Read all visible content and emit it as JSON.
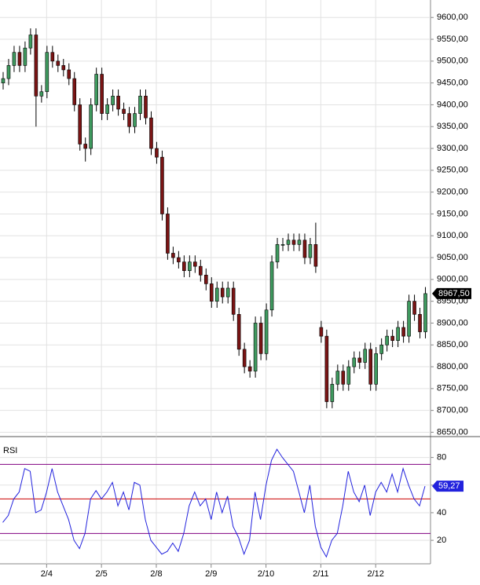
{
  "chart_data": [
    {
      "type": "candlestick",
      "open": [
        9450,
        9460,
        9490,
        9520,
        9490,
        9530,
        9560,
        9420,
        9430,
        9520,
        9500,
        9490,
        9480,
        9460,
        9400,
        9310,
        9300,
        9400,
        9470,
        9380,
        9400,
        9420,
        9390,
        9380,
        9350,
        9380,
        9420,
        9370,
        9300,
        9280,
        9150,
        9060,
        9050,
        9040,
        9020,
        9040,
        9030,
        9010,
        8990,
        8950,
        8980,
        8960,
        8980,
        8920,
        8840,
        8800,
        8790,
        8900,
        8830,
        8930,
        9040,
        9080,
        9080,
        9090,
        9080,
        9090,
        9050,
        9080,
        8890,
        8870,
        8720,
        8760,
        8790,
        8760,
        8800,
        8820,
        8810,
        8840,
        8760,
        8830,
        8850,
        8870,
        8860,
        8890,
        8870,
        8950,
        8920,
        8880
      ],
      "high": [
        9475,
        9505,
        9535,
        9535,
        9545,
        9575,
        9575,
        9445,
        9535,
        9535,
        9515,
        9505,
        9495,
        9475,
        9415,
        9325,
        9415,
        9485,
        9485,
        9415,
        9435,
        9435,
        9405,
        9395,
        9395,
        9435,
        9435,
        9385,
        9315,
        9295,
        9165,
        9075,
        9065,
        9055,
        9055,
        9055,
        9045,
        9025,
        9005,
        8995,
        8995,
        8995,
        8995,
        8935,
        8855,
        8815,
        8915,
        8915,
        8945,
        9055,
        9095,
        9095,
        9105,
        9105,
        9105,
        9105,
        9095,
        9130,
        8905,
        8885,
        8775,
        8805,
        8805,
        8815,
        8835,
        8835,
        8855,
        8855,
        8845,
        8865,
        8885,
        8885,
        8905,
        8905,
        8965,
        8965,
        8935,
        8982.5
      ],
      "low": [
        9435,
        9445,
        9475,
        9475,
        9475,
        9515,
        9350,
        9405,
        9415,
        9485,
        9475,
        9465,
        9445,
        9385,
        9295,
        9270,
        9285,
        9385,
        9365,
        9365,
        9385,
        9375,
        9365,
        9335,
        9335,
        9365,
        9355,
        9285,
        9265,
        9135,
        9045,
        9035,
        9025,
        9005,
        9005,
        9015,
        8995,
        8975,
        8935,
        8935,
        8945,
        8945,
        8905,
        8825,
        8785,
        8775,
        8775,
        8815,
        8815,
        8915,
        9025,
        9065,
        9065,
        9065,
        9065,
        9035,
        9035,
        9015,
        8855,
        8705,
        8705,
        8745,
        8745,
        8745,
        8785,
        8795,
        8795,
        8745,
        8745,
        8815,
        8835,
        8845,
        8845,
        8855,
        8855,
        8905,
        8865,
        8865
      ],
      "close": [
        9460,
        9490,
        9520,
        9490,
        9530,
        9560,
        9420,
        9430,
        9520,
        9500,
        9490,
        9480,
        9460,
        9400,
        9310,
        9300,
        9400,
        9470,
        9380,
        9400,
        9420,
        9390,
        9380,
        9350,
        9380,
        9420,
        9370,
        9300,
        9280,
        9150,
        9060,
        9050,
        9040,
        9020,
        9040,
        9030,
        9010,
        8990,
        8950,
        8980,
        8960,
        8980,
        8920,
        8840,
        8800,
        8790,
        8900,
        8830,
        8930,
        9040,
        9080,
        9080,
        9090,
        9080,
        9090,
        9050,
        9080,
        9030,
        8870,
        8720,
        8760,
        8790,
        8760,
        8800,
        8820,
        8810,
        8840,
        8760,
        8830,
        8850,
        8870,
        8860,
        8890,
        8870,
        8950,
        8920,
        8880,
        8967.5
      ],
      "last_label": "8967,50",
      "up_color": "#3f9a5f",
      "down_color": "#7a1414",
      "ylim": [
        8640,
        9640
      ],
      "yticks": [
        {
          "value": 8650,
          "label": "8650,00"
        },
        {
          "value": 8700,
          "label": "8700,00"
        },
        {
          "value": 8750,
          "label": "8750,00"
        },
        {
          "value": 8800,
          "label": "8800,00"
        },
        {
          "value": 8850,
          "label": "8850,00"
        },
        {
          "value": 8900,
          "label": "8900,00"
        },
        {
          "value": 8950,
          "label": "8950,00"
        },
        {
          "value": 9000,
          "label": "9000,00"
        },
        {
          "value": 9050,
          "label": "9050,00"
        },
        {
          "value": 9100,
          "label": "9100,00"
        },
        {
          "value": 9150,
          "label": "9150,00"
        },
        {
          "value": 9200,
          "label": "9200,00"
        },
        {
          "value": 9250,
          "label": "9250,00"
        },
        {
          "value": 9300,
          "label": "9300,00"
        },
        {
          "value": 9350,
          "label": "9350,00"
        },
        {
          "value": 9400,
          "label": "9400,00"
        },
        {
          "value": 9450,
          "label": "9450,00"
        },
        {
          "value": 9500,
          "label": "9500,00"
        },
        {
          "value": 9550,
          "label": "9550,00"
        },
        {
          "value": 9600,
          "label": "9600,00"
        }
      ],
      "grid": true
    },
    {
      "type": "line",
      "title": "RSI",
      "color": "#2222dd",
      "values": [
        33,
        38,
        50,
        55,
        72,
        70,
        40,
        42,
        55,
        72,
        55,
        45,
        35,
        20,
        14,
        25,
        50,
        56,
        50,
        55,
        62,
        45,
        55,
        42,
        62,
        60,
        35,
        20,
        15,
        10,
        12,
        18,
        12,
        25,
        45,
        55,
        45,
        50,
        35,
        55,
        40,
        52,
        30,
        22,
        10,
        20,
        55,
        35,
        60,
        78,
        86,
        80,
        75,
        70,
        55,
        40,
        60,
        30,
        15,
        8,
        20,
        25,
        45,
        70,
        55,
        48,
        60,
        38,
        55,
        62,
        55,
        68,
        55,
        72,
        60,
        50,
        45,
        59.27
      ],
      "last_label": "59,27",
      "levels": [
        {
          "value": 75,
          "color": "#800080"
        },
        {
          "value": 50,
          "color": "#cc0000"
        },
        {
          "value": 25,
          "color": "#800080"
        }
      ],
      "ylim": [
        3,
        94
      ],
      "yticks": [
        20,
        40,
        60,
        80
      ],
      "xlim": [
        -0.5,
        78
      ],
      "xticks": [
        {
          "value": 8,
          "label": "2/4"
        },
        {
          "value": 18,
          "label": "2/5"
        },
        {
          "value": 28,
          "label": "2/8"
        },
        {
          "value": 38,
          "label": "2/9"
        },
        {
          "value": 48,
          "label": "2/10"
        },
        {
          "value": 58,
          "label": "2/11"
        },
        {
          "value": 68,
          "label": "2/12"
        }
      ],
      "grid": true
    }
  ]
}
